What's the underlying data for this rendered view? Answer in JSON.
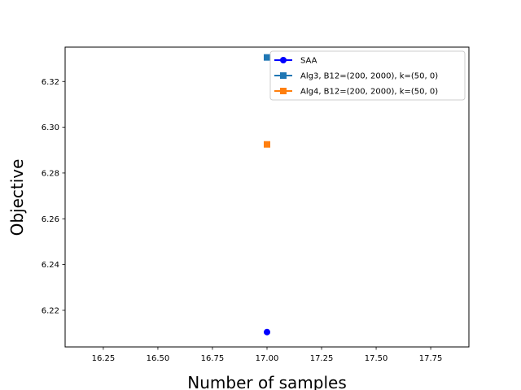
{
  "chart_data": {
    "type": "scatter",
    "title": "",
    "xlabel": "Number of samples",
    "ylabel": "Objective",
    "xlim": [
      16.075,
      17.925
    ],
    "ylim": [
      6.204,
      6.335
    ],
    "x_ticks": [
      16.25,
      16.5,
      16.75,
      17.0,
      17.25,
      17.5,
      17.75
    ],
    "x_tick_labels": [
      "16.25",
      "16.50",
      "16.75",
      "17.00",
      "17.25",
      "17.50",
      "17.75"
    ],
    "y_ticks": [
      6.22,
      6.24,
      6.26,
      6.28,
      6.3,
      6.32
    ],
    "y_tick_labels": [
      "6.22",
      "6.24",
      "6.26",
      "6.28",
      "6.30",
      "6.32"
    ],
    "grid": false,
    "legend_position": "top-right",
    "series": [
      {
        "name": "SAA",
        "color": "#0000ff",
        "marker": "circle",
        "x": [
          17.0
        ],
        "y": [
          6.2105
        ]
      },
      {
        "name": "Alg3, B12=(200, 2000), k=(50, 0)",
        "color": "#1f77b4",
        "marker": "square",
        "x": [
          17.0
        ],
        "y": [
          6.3305
        ]
      },
      {
        "name": "Alg4, B12=(200, 2000), k=(50, 0)",
        "color": "#ff7f0e",
        "marker": "square",
        "x": [
          17.0
        ],
        "y": [
          6.2925
        ]
      }
    ]
  }
}
